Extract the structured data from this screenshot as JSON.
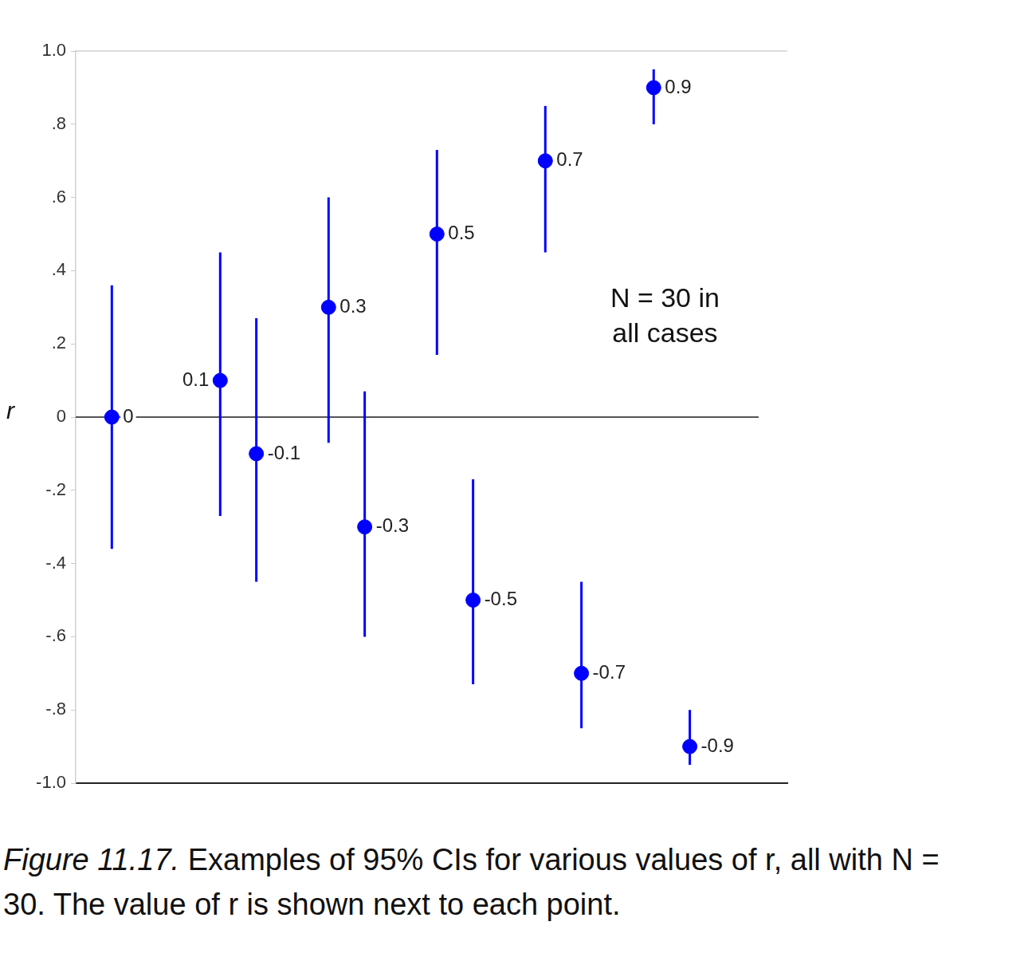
{
  "chart_data": {
    "type": "scatter",
    "y_label": "r",
    "x": [
      0,
      3,
      4,
      6,
      7,
      9,
      10,
      12,
      13,
      15,
      16
    ],
    "values": [
      0,
      0.1,
      -0.1,
      0.3,
      -0.3,
      0.5,
      -0.5,
      0.7,
      -0.7,
      0.9,
      -0.9
    ],
    "ci_lower": [
      -0.36,
      -0.27,
      -0.45,
      -0.07,
      -0.6,
      0.17,
      -0.73,
      0.45,
      -0.85,
      0.8,
      -0.95
    ],
    "ci_upper": [
      0.36,
      0.45,
      0.27,
      0.6,
      0.07,
      0.73,
      -0.17,
      0.85,
      -0.45,
      0.95,
      -0.8
    ],
    "color": "#0000ff",
    "marker": "circle",
    "xlim": [
      -1,
      18.7
    ],
    "ylim": [
      -1,
      1
    ],
    "yticks": [
      {
        "value": -1,
        "label": "-1.0"
      },
      {
        "value": -0.8,
        "label": "-.8"
      },
      {
        "value": -0.6,
        "label": "-.6"
      },
      {
        "value": -0.4,
        "label": "-.4"
      },
      {
        "value": -0.2,
        "label": "-.2"
      },
      0,
      {
        "value": 0.2,
        "label": ".2"
      },
      {
        "value": 0.4,
        "label": ".4"
      },
      {
        "value": 0.6,
        "label": ".6"
      },
      {
        "value": 0.8,
        "label": ".8"
      },
      {
        "value": 1,
        "label": "1.0"
      }
    ],
    "reference_line": 0,
    "annotation": [
      "N = 30 in",
      "all cases"
    ],
    "caption": {
      "label": "Figure 11.17.",
      "text": "Examples of 95% CIs for various values of r, all with N = 30. The value of r is shown next to each point."
    },
    "data_labels": true,
    "tick_labels": "y",
    "grid": false
  }
}
